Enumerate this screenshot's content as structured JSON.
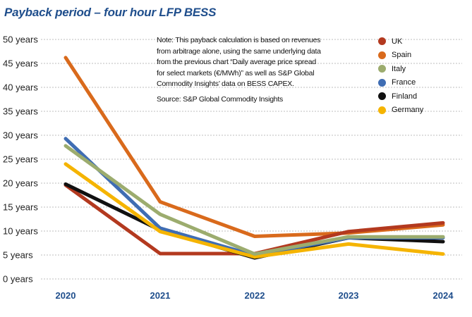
{
  "chart_data": {
    "type": "line",
    "title": "Payback period – four hour LFP BESS",
    "x": [
      "2020",
      "2021",
      "2022",
      "2023",
      "2024"
    ],
    "y_ticks": [
      "0 years",
      "5 years",
      "10 years",
      "15 years",
      "20 years",
      "25 years",
      "30 years",
      "35 years",
      "40 years",
      "45 years",
      "50 years"
    ],
    "ylim": [
      0,
      50
    ],
    "grid": "horizontal dashed",
    "legend_placement": "top-right",
    "note_lines": [
      "Note: This payback calculation is based on revenues",
      "from arbitrage alone, using the same underlying data",
      "from the previous chart “Daily average price spread",
      "for select markets (€/MWh)” as well as S&P Global",
      "Commodity Insights’ data on BESS CAPEX."
    ],
    "source": "Source: S&P Global Commodity Insights",
    "series": [
      {
        "name": "Spain",
        "color": "#d96a1c",
        "values": [
          46.2,
          16.1,
          8.9,
          9.6,
          11.3
        ]
      },
      {
        "name": "UK",
        "color": "#b3391f",
        "values": [
          19.6,
          5.3,
          5.3,
          9.9,
          11.7
        ]
      },
      {
        "name": "Finland",
        "color": "#111111",
        "values": [
          19.8,
          10.2,
          4.4,
          8.6,
          7.8
        ]
      },
      {
        "name": "France",
        "color": "#3f6db3",
        "values": [
          29.3,
          10.6,
          4.9,
          8.6,
          8.6
        ]
      },
      {
        "name": "Germany",
        "color": "#f5b400",
        "values": [
          24.0,
          9.9,
          4.6,
          7.3,
          5.2
        ]
      },
      {
        "name": "Italy",
        "color": "#9cac6e",
        "values": [
          27.8,
          13.5,
          5.2,
          8.8,
          8.8
        ]
      }
    ],
    "legend": [
      {
        "name": "UK",
        "color": "#b3391f"
      },
      {
        "name": "Spain",
        "color": "#d96a1c"
      },
      {
        "name": "Italy",
        "color": "#9cac6e"
      },
      {
        "name": "France",
        "color": "#3f6db3"
      },
      {
        "name": "Finland",
        "color": "#111111"
      },
      {
        "name": "Germany",
        "color": "#f5b400"
      }
    ]
  }
}
